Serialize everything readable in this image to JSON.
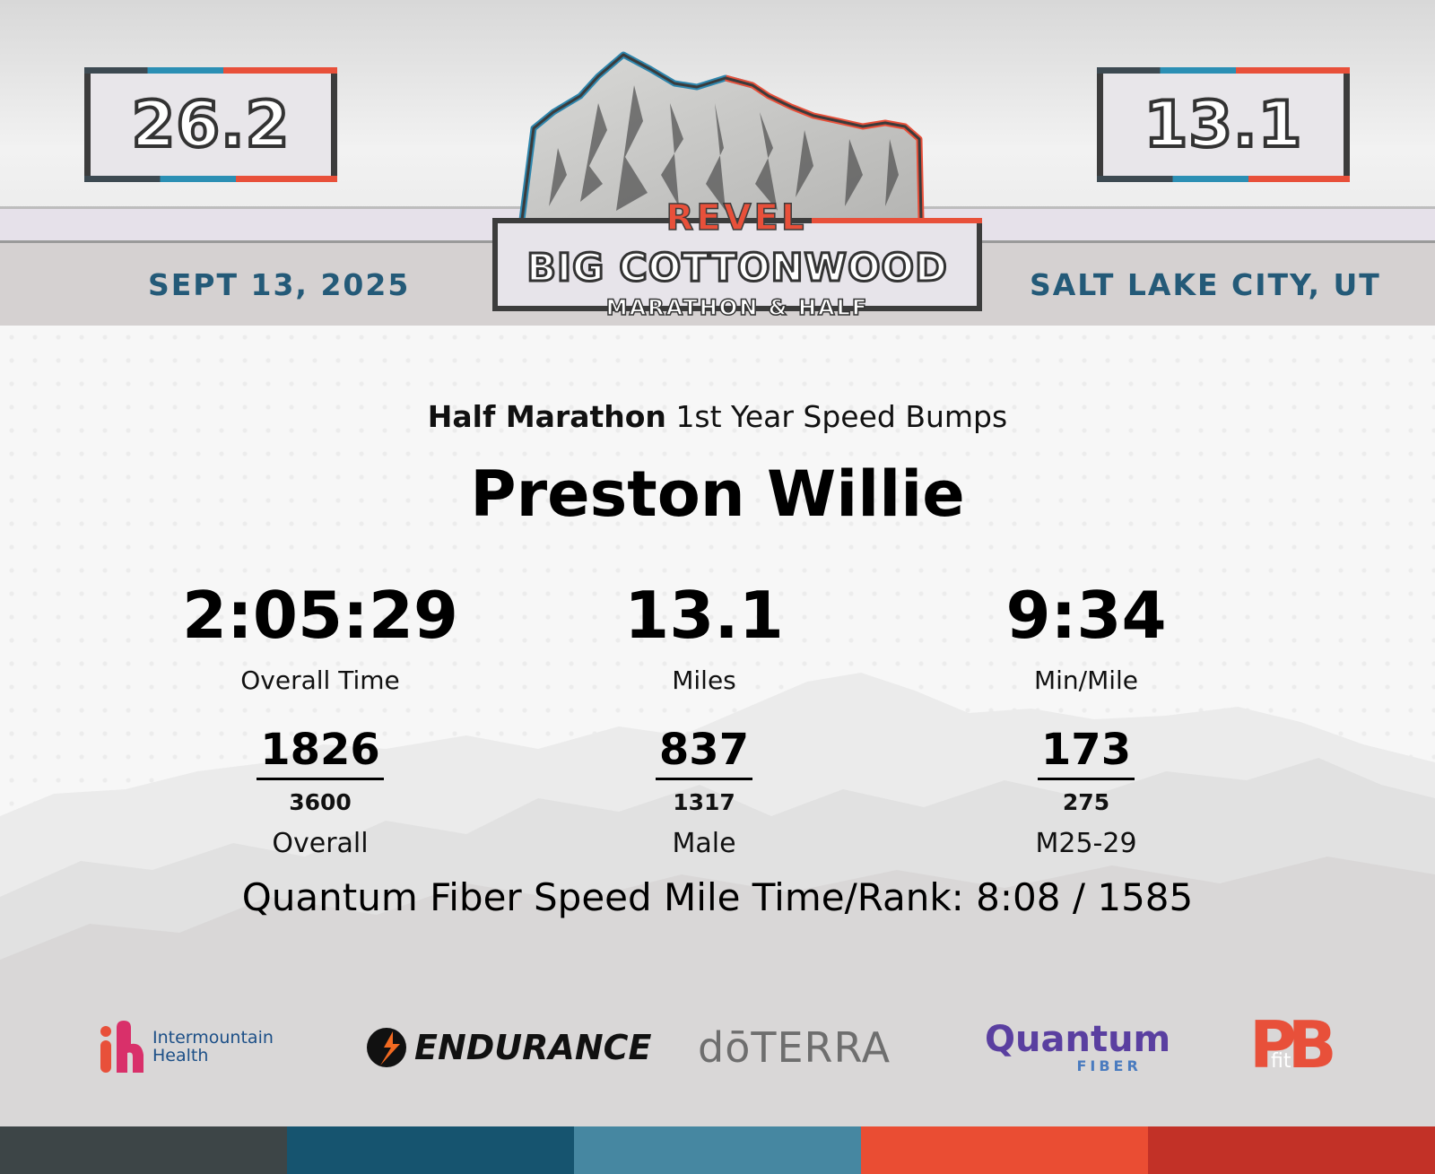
{
  "header": {
    "distance_left": "26.2",
    "distance_right": "13.1",
    "date": "SEPT 13, 2025",
    "city": "SALT LAKE CITY, UT",
    "logo_top": "REVEL",
    "logo_main": "BIG COTTONWOOD",
    "logo_sub": "MARATHON & HALF"
  },
  "result": {
    "event": "Half Marathon",
    "team": "1st Year Speed Bumps",
    "runner_name": "Preston Willie",
    "stats": [
      {
        "value": "2:05:29",
        "label": "Overall Time"
      },
      {
        "value": "13.1",
        "label": "Miles"
      },
      {
        "value": "9:34",
        "label": "Min/Mile"
      }
    ],
    "ranks": [
      {
        "place": "1826",
        "total": "3600",
        "label": "Overall"
      },
      {
        "place": "837",
        "total": "1317",
        "label": "Male"
      },
      {
        "place": "173",
        "total": "275",
        "label": "M25-29"
      }
    ],
    "speed_mile": "Quantum Fiber Speed Mile Time/Rank: 8:08 / 1585"
  },
  "sponsors": {
    "intermountain_line1": "Intermountain",
    "intermountain_line2": "Health",
    "gatorade": "ENDURANCE",
    "doterra": "dōTERRA",
    "quantum": "Quantum",
    "quantum_sub": "FIBER",
    "pbfit_big": "PB",
    "pbfit_small": "fit"
  },
  "colors": {
    "dark": "#3d4547",
    "navy": "#16546f",
    "teal": "#4687a1",
    "orange": "#ea4d33",
    "red": "#c23127",
    "date_blue": "#245a78"
  }
}
